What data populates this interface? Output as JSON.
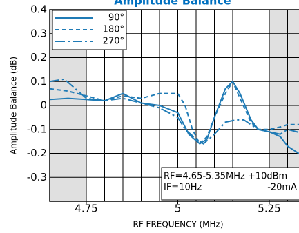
{
  "chart_data": {
    "type": "line",
    "title": "Amplitude Balance",
    "x_label": "RF FREQUENCY (MHz)",
    "y_label": "Amplitude Balance (dB)",
    "xlim": [
      4.65,
      5.35
    ],
    "ylim": [
      -0.4,
      0.4
    ],
    "xticks": [
      4.75,
      5,
      5.25
    ],
    "xgrid": [
      4.7,
      4.75,
      4.8,
      4.85,
      4.9,
      4.95,
      5,
      5.05,
      5.1,
      5.15,
      5.2,
      5.25,
      5.3
    ],
    "yticks": [
      0.4,
      0.3,
      0.2,
      0.1,
      0,
      -0.1,
      -0.2,
      -0.3
    ],
    "grid": true,
    "legend": "upper left",
    "shaded": [
      [
        4.65,
        4.75
      ],
      [
        5.25,
        5.35
      ]
    ],
    "annotations": [
      "RF=4.65-5.35MHz +10dBm",
      "IF=10Hz",
      "-20mA"
    ],
    "series": [
      {
        "name": "90°",
        "color": "#1f7bb6",
        "dash": "none",
        "x": [
          4.65,
          4.7,
          4.75,
          4.8,
          4.85,
          4.9,
          4.95,
          5.0,
          5.03,
          5.06,
          5.08,
          5.1,
          5.13,
          5.15,
          5.17,
          5.2,
          5.22,
          5.25,
          5.28,
          5.3,
          5.33,
          5.35
        ],
        "values": [
          0.025,
          0.03,
          0.025,
          0.02,
          0.05,
          0.01,
          0.0,
          -0.03,
          -0.12,
          -0.16,
          -0.14,
          -0.05,
          0.07,
          0.1,
          0.05,
          -0.06,
          -0.1,
          -0.11,
          -0.13,
          -0.17,
          -0.2,
          -0.21
        ]
      },
      {
        "name": "180°",
        "color": "#1f7bb6",
        "dash": "6,4",
        "x": [
          4.65,
          4.7,
          4.75,
          4.8,
          4.85,
          4.9,
          4.95,
          5.0,
          5.02,
          5.04,
          5.06,
          5.08,
          5.1,
          5.13,
          5.15,
          5.17,
          5.2,
          5.22,
          5.25,
          5.28,
          5.3,
          5.35
        ],
        "values": [
          0.07,
          0.06,
          0.04,
          0.02,
          0.04,
          0.03,
          0.05,
          0.05,
          0.0,
          -0.1,
          -0.16,
          -0.13,
          -0.05,
          0.05,
          0.1,
          0.03,
          -0.07,
          -0.1,
          -0.1,
          -0.09,
          -0.08,
          -0.08
        ]
      },
      {
        "name": "270°",
        "color": "#1f7bb6",
        "dash": "14,4,3,4",
        "x": [
          4.65,
          4.69,
          4.72,
          4.75,
          4.8,
          4.85,
          4.9,
          4.95,
          5.0,
          5.02,
          5.05,
          5.07,
          5.1,
          5.13,
          5.16,
          5.18,
          5.2,
          5.22,
          5.25,
          5.28,
          5.3,
          5.35
        ],
        "values": [
          0.1,
          0.11,
          0.07,
          0.03,
          0.02,
          0.03,
          0.01,
          -0.01,
          -0.05,
          -0.1,
          -0.14,
          -0.16,
          -0.12,
          -0.07,
          -0.06,
          -0.06,
          -0.08,
          -0.1,
          -0.11,
          -0.12,
          -0.1,
          -0.12
        ]
      }
    ]
  }
}
